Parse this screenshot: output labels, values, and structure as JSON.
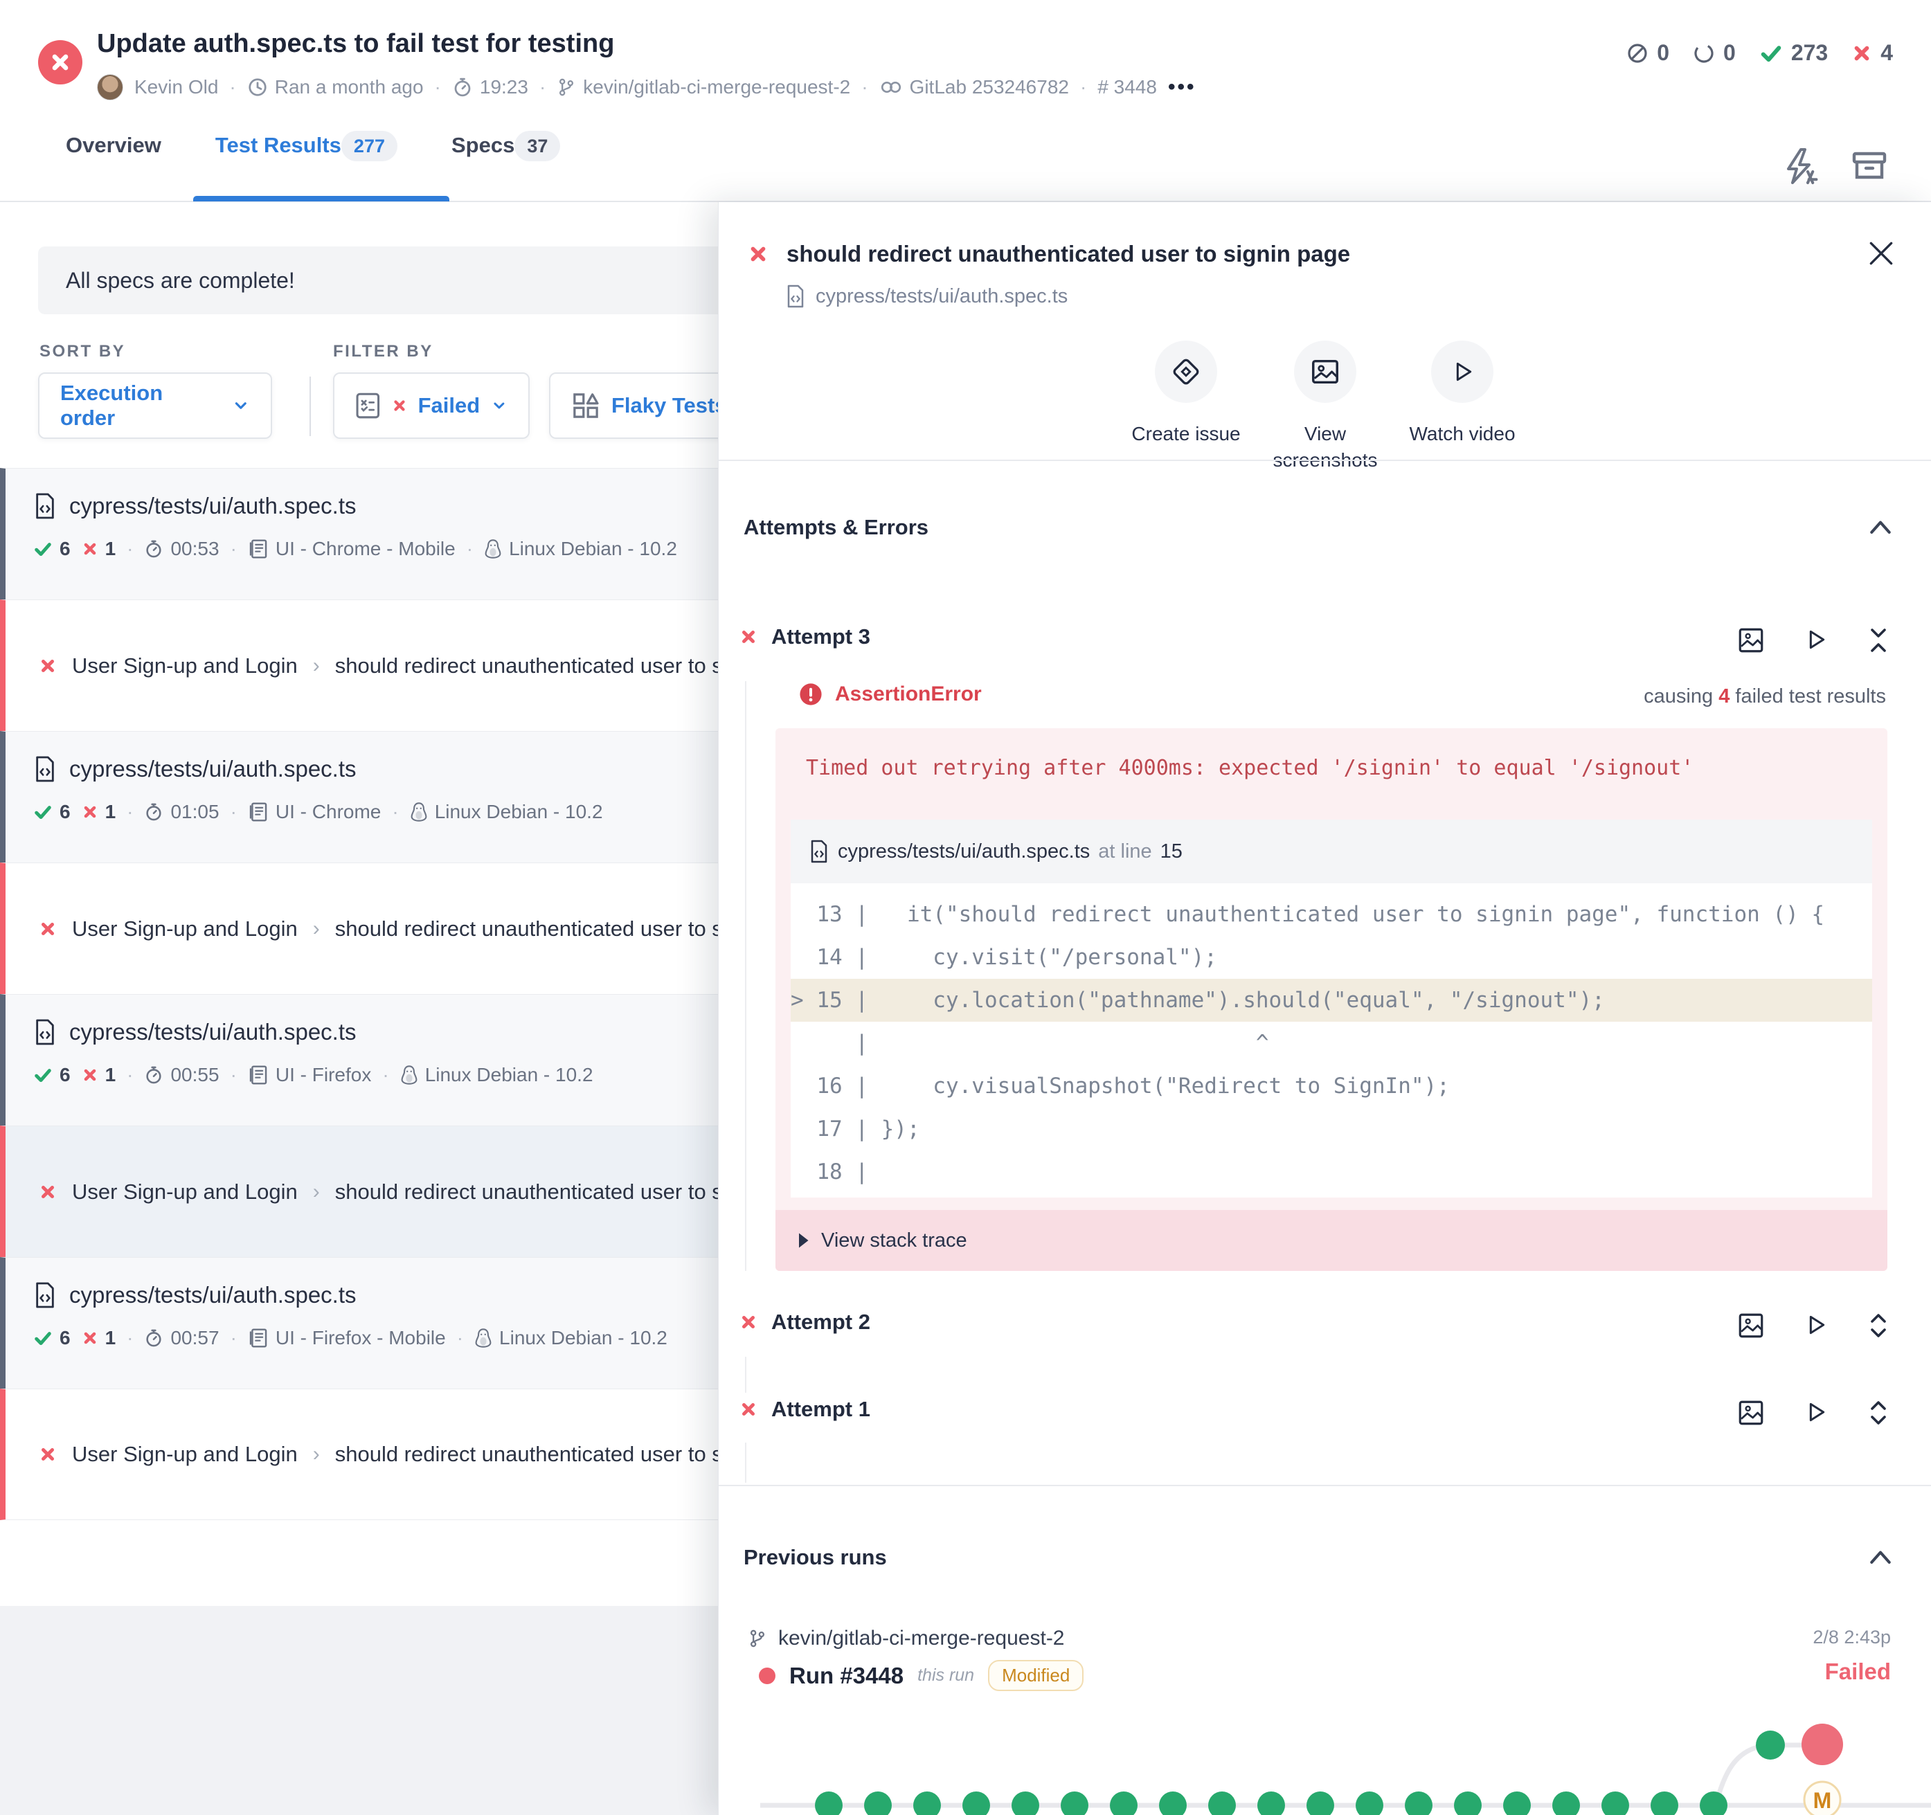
{
  "palette": {
    "accent_blue": "#2e7cd9",
    "fail_red": "#ee5d68",
    "pass_green": "#27a96d",
    "warn_orange": "#c9881e",
    "error_text_red": "#d9434e",
    "pink_bg": "#fcf0f2"
  },
  "glyphs": {
    "dot_sep": "·",
    "crumb_sep": "›",
    "more": "•••",
    "caret": "^"
  },
  "header": {
    "title": "Update auth.spec.ts to fail test for testing",
    "author": "Kevin Old",
    "ran": "Ran a month ago",
    "duration": "19:23",
    "branch": "kevin/gitlab-ci-merge-request-2",
    "ci": "GitLab 253246782",
    "run_number": "# 3448",
    "stats": {
      "skipped": "0",
      "pending": "0",
      "passed": "273",
      "failed": "4"
    }
  },
  "tabs": [
    {
      "label": "Overview",
      "badge": ""
    },
    {
      "label": "Test Results",
      "badge": "277"
    },
    {
      "label": "Specs",
      "badge": "37"
    }
  ],
  "left": {
    "banner": "All specs are complete!",
    "sort_by_label": "SORT BY",
    "filter_by_label": "FILTER BY",
    "sort_value": "Execution order",
    "filter_failed_label": "Failed",
    "filter_flaky_label": "Flaky Tests",
    "items": [
      {
        "type": "spec",
        "file": "cypress/tests/ui/auth.spec.ts",
        "passed": "6",
        "failed": "1",
        "time": "00:53",
        "browser": "UI - Chrome - Mobile",
        "os": "Linux Debian - 10.2"
      },
      {
        "type": "test",
        "suite": "User Sign-up and Login",
        "name": "should redirect unauthenticated user to signin page"
      },
      {
        "type": "spec",
        "file": "cypress/tests/ui/auth.spec.ts",
        "passed": "6",
        "failed": "1",
        "time": "01:05",
        "browser": "UI - Chrome",
        "os": "Linux Debian - 10.2"
      },
      {
        "type": "test",
        "suite": "User Sign-up and Login",
        "name": "should redirect unauthenticated user to signin page"
      },
      {
        "type": "spec",
        "file": "cypress/tests/ui/auth.spec.ts",
        "passed": "6",
        "failed": "1",
        "time": "00:55",
        "browser": "UI - Firefox",
        "os": "Linux Debian - 10.2"
      },
      {
        "type": "test",
        "suite": "User Sign-up and Login",
        "name": "should redirect unauthenticated user to signin page"
      },
      {
        "type": "spec",
        "file": "cypress/tests/ui/auth.spec.ts",
        "passed": "6",
        "failed": "1",
        "time": "00:57",
        "browser": "UI - Firefox - Mobile",
        "os": "Linux Debian - 10.2"
      },
      {
        "type": "test",
        "suite": "User Sign-up and Login",
        "name": "should redirect unauthenticated user to signin page"
      }
    ]
  },
  "detail": {
    "title": "should redirect unauthenticated user to signin page",
    "path": "cypress/tests/ui/auth.spec.ts",
    "actions": [
      {
        "label": "Create issue"
      },
      {
        "label": "View screenshots"
      },
      {
        "label": "Watch video"
      }
    ],
    "attempts_header": "Attempts & Errors",
    "attempts": [
      {
        "label": "Attempt 3"
      },
      {
        "label": "Attempt 2"
      },
      {
        "label": "Attempt 1"
      }
    ],
    "error": {
      "type": "AssertionError",
      "causing_prefix": "causing",
      "causing_count": "4",
      "causing_suffix": "failed test results",
      "message": "Timed out retrying after 4000ms: expected '/signin' to equal '/signout'",
      "file": "cypress/tests/ui/auth.spec.ts",
      "at_line_label": "at line",
      "line_number": "15",
      "code_lines": [
        "  13 |   it(\"should redirect unauthenticated user to signin page\", function () {",
        "  14 |     cy.visit(\"/personal\");",
        "> 15 |     cy.location(\"pathname\").should(\"equal\", \"/signout\");",
        "     |                              ^",
        "  16 |     cy.visualSnapshot(\"Redirect to SignIn\");",
        "  17 | });",
        "  18 |"
      ],
      "stack_trace_label": "View stack trace"
    },
    "previous_runs": {
      "header": "Previous runs",
      "branch": "kevin/gitlab-ci-merge-request-2",
      "date": "2/8 2:43p",
      "run_label": "Run #3448",
      "this_run_label": "this run",
      "modified_label": "Modified",
      "status": "Failed",
      "timeline": {
        "main_dots": 19
      }
    }
  }
}
